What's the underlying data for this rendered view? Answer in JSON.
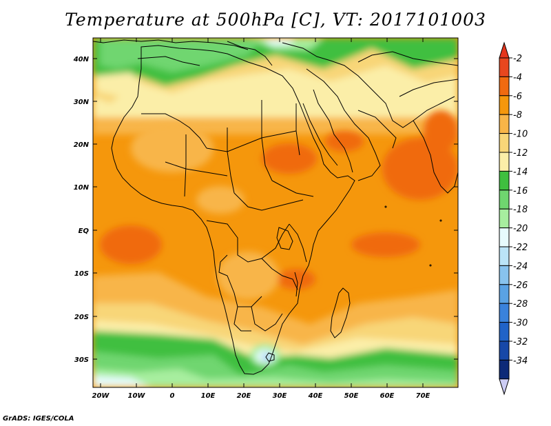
{
  "title": "Temperature at 500hPa [C], VT: 2017101003",
  "credit": "GrADS: IGES/COLA",
  "lat_labels": [
    "40N",
    "30N",
    "20N",
    "10N",
    "EQ",
    "10S",
    "20S",
    "30S"
  ],
  "lon_labels": [
    "20W",
    "10W",
    "0",
    "10E",
    "20E",
    "30E",
    "40E",
    "50E",
    "60E",
    "70E"
  ],
  "colorbar": {
    "labels": [
      "-2",
      "-4",
      "-6",
      "-8",
      "-10",
      "-12",
      "-14",
      "-16",
      "-18",
      "-20",
      "-22",
      "-24",
      "-26",
      "-28",
      "-30",
      "-32",
      "-34"
    ],
    "colors": [
      "#e8471f",
      "#f06a10",
      "#f5970c",
      "#f8b548",
      "#f8d678",
      "#fbeea8",
      "#3fbf3f",
      "#6fd66f",
      "#a7ee9f",
      "#e7fbfd",
      "#bbe4f7",
      "#88c3ee",
      "#5aa2e4",
      "#3a82dc",
      "#2063c8",
      "#1748a8",
      "#0d2a78"
    ],
    "top_color": "#e5361d",
    "bottom_color": "#ccccf4"
  },
  "palette": {
    "coastline": "#000000",
    "border": "#000000"
  }
}
